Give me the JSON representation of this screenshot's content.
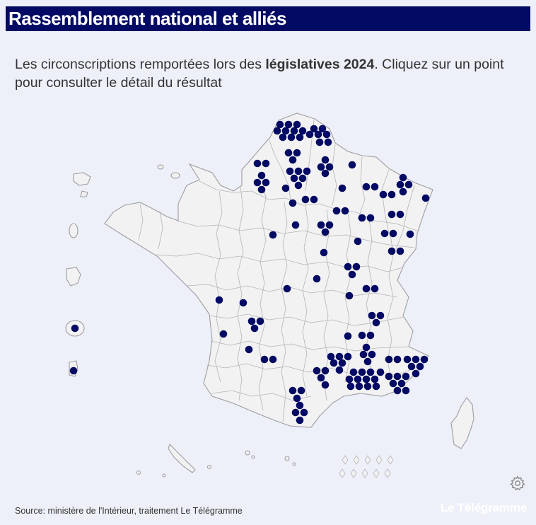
{
  "header": {
    "title": "Rassemblement national et alliés",
    "subtitle_before": "Les circonscriptions remportées lors des ",
    "subtitle_bold": "législatives 2024",
    "subtitle_after": ". Cliquez sur un point pour consulter le détail du résultat"
  },
  "footer": {
    "source": "Source: ministère de l'Intérieur, traitement Le Télégramme",
    "brand": "Le Télégramme"
  },
  "colors": {
    "title_bg": "#030a64",
    "dot": "#030a64",
    "background": "#edf0f8",
    "land": "#f2f2f2"
  },
  "icons": {
    "settings": "gear-icon"
  }
}
